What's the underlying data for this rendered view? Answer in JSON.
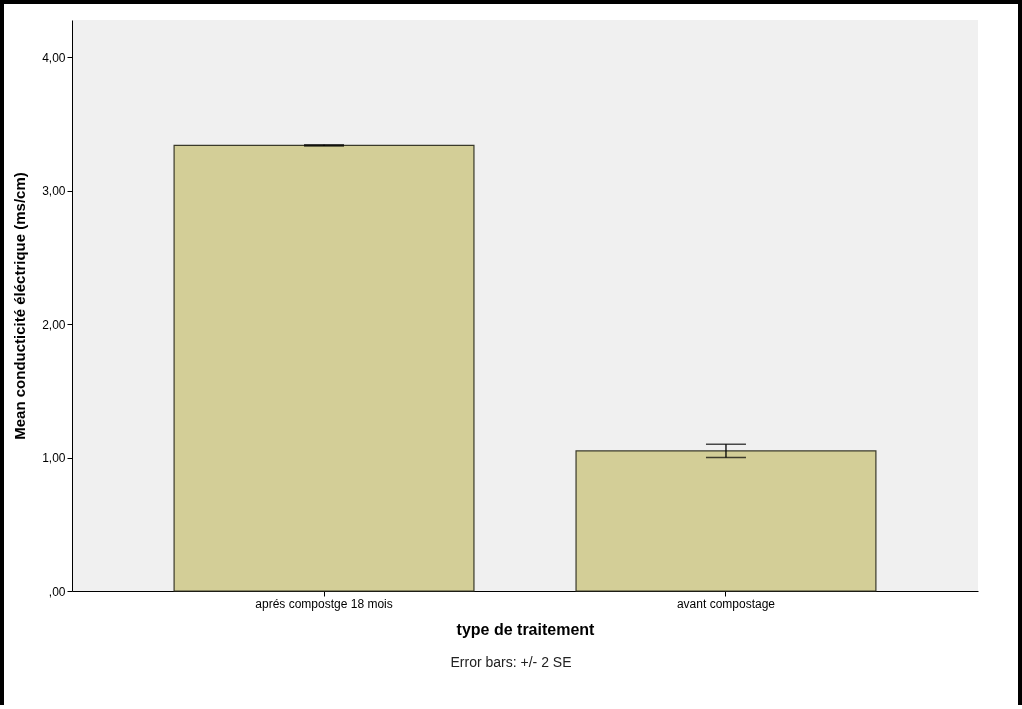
{
  "chart_data": {
    "type": "bar",
    "xlabel": "type de traitement",
    "ylabel": "Mean conducticité éléctrique (ms/cm)",
    "categories": [
      "aprés compostge 18 mois",
      "avant compostage"
    ],
    "values": [
      3.34,
      1.05
    ],
    "errors": [
      0.005,
      0.05
    ],
    "color": "#d3ce97",
    "ylim": [
      0,
      4.28
    ],
    "yticks": [
      {
        "value": 0,
        "label": ",00"
      },
      {
        "value": 1,
        "label": "1,00"
      },
      {
        "value": 2,
        "label": "2,00"
      },
      {
        "value": 3,
        "label": "3,00"
      },
      {
        "value": 4,
        "label": "4,00"
      }
    ],
    "grid": false,
    "annotations": [
      "Error bars: +/- 2 SE"
    ]
  }
}
